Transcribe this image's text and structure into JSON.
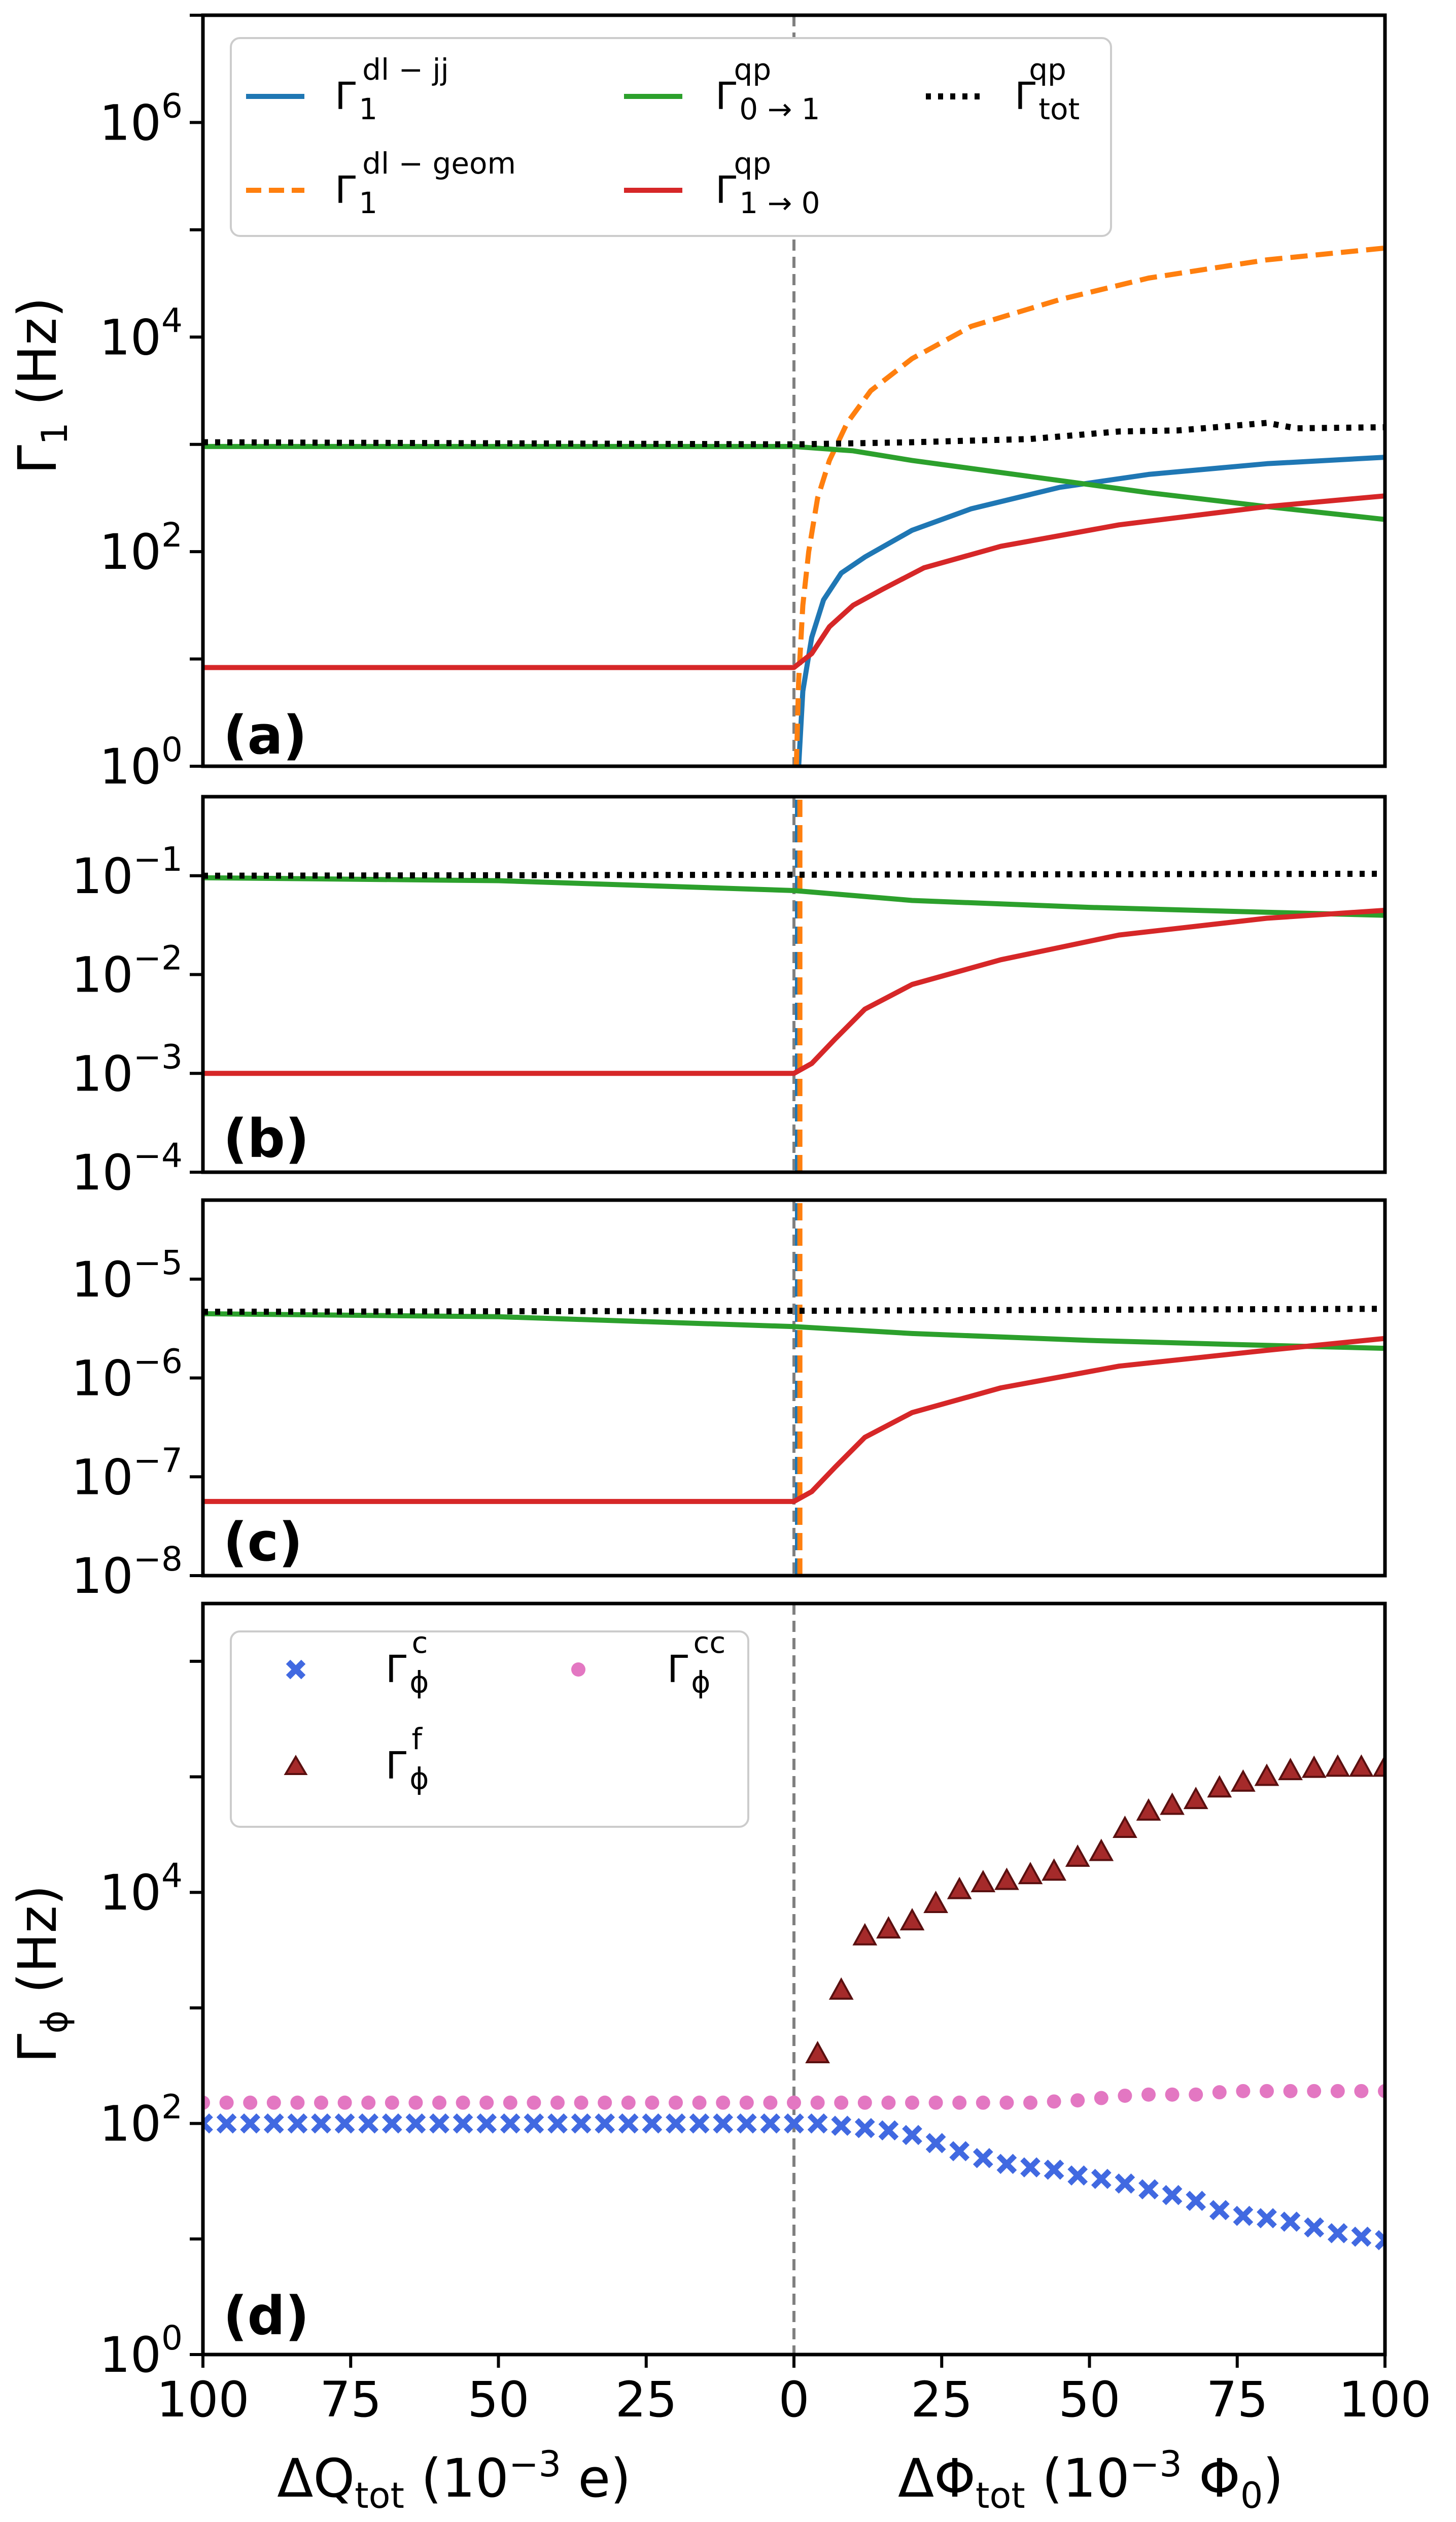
{
  "chart_data": [
    {
      "type": "line",
      "panel": "(a)",
      "ylabel": "Γ1 (Hz)",
      "yscale": "log",
      "ylim_exp": [
        0,
        7
      ],
      "ytick_exps": [
        0,
        2,
        4,
        6
      ],
      "xlim": [
        -100,
        100
      ],
      "legend": {
        "placement": "top-left",
        "entries": [
          {
            "series": "g1_dl_jj",
            "label": "Γ1^dl−jj"
          },
          {
            "series": "g1_dl_geom",
            "label": "Γ1^dl−geom"
          },
          {
            "series": "g01_qp",
            "label": "Γ0→1^qp"
          },
          {
            "series": "g10_qp",
            "label": "Γ1→0^qp"
          },
          {
            "series": "gtot_qp",
            "label": "Γtot^qp"
          }
        ]
      },
      "series": [
        {
          "name": "g1_dl_jj",
          "color": "#1f77b4",
          "style": "solid",
          "x": [
            0.8,
            1.5,
            3,
            5,
            8,
            12,
            20,
            30,
            45,
            60,
            80,
            100
          ],
          "log10": [
            0,
            0.7,
            1.2,
            1.55,
            1.8,
            1.95,
            2.2,
            2.4,
            2.6,
            2.72,
            2.82,
            2.88
          ]
        },
        {
          "name": "g1_dl_geom",
          "color": "#ff7f0e",
          "style": "dashed",
          "x": [
            0.4,
            0.8,
            1.5,
            2.5,
            4,
            6,
            9,
            13,
            20,
            30,
            45,
            60,
            80,
            100
          ],
          "log10": [
            0,
            0.8,
            1.5,
            2.0,
            2.5,
            2.85,
            3.2,
            3.5,
            3.8,
            4.1,
            4.35,
            4.55,
            4.72,
            4.83
          ]
        },
        {
          "name": "g01_qp",
          "color": "#2ca02c",
          "style": "solid",
          "x": [
            -100,
            -50,
            0,
            10,
            20,
            40,
            60,
            80,
            100
          ],
          "log10": [
            2.98,
            2.98,
            2.98,
            2.94,
            2.85,
            2.7,
            2.55,
            2.42,
            2.3
          ]
        },
        {
          "name": "g10_qp",
          "color": "#d62728",
          "style": "solid",
          "x": [
            -100,
            0,
            3,
            6,
            10,
            15,
            22,
            35,
            55,
            80,
            100
          ],
          "log10": [
            0.92,
            0.92,
            1.05,
            1.3,
            1.5,
            1.65,
            1.85,
            2.05,
            2.25,
            2.42,
            2.52
          ]
        },
        {
          "name": "gtot_qp",
          "color": "#000000",
          "style": "dotted",
          "x": [
            -100,
            -50,
            0,
            20,
            40,
            55,
            65,
            80,
            85,
            100
          ],
          "log10": [
            3.02,
            3.01,
            3.0,
            3.02,
            3.05,
            3.12,
            3.13,
            3.2,
            3.15,
            3.16
          ]
        }
      ]
    },
    {
      "type": "line",
      "panel": "(b)",
      "yscale": "log",
      "ylim_exp": [
        -4,
        -0.2
      ],
      "ytick_exps": [
        -4,
        -3,
        -2,
        -1
      ],
      "xlim": [
        -100,
        100
      ],
      "series": [
        {
          "name": "g1_dl_jj",
          "color": "#1f77b4",
          "style": "dashed",
          "x": [
            0.6,
            0.6
          ],
          "log10": [
            -4,
            -0.2
          ]
        },
        {
          "name": "g1_dl_geom",
          "color": "#ff7f0e",
          "style": "dashed",
          "x": [
            1.0,
            1.0
          ],
          "log10": [
            -4,
            -0.2
          ]
        },
        {
          "name": "g01_qp",
          "color": "#2ca02c",
          "style": "solid",
          "x": [
            -100,
            -50,
            0,
            20,
            50,
            80,
            100
          ],
          "log10": [
            -1.02,
            -1.05,
            -1.15,
            -1.25,
            -1.32,
            -1.37,
            -1.4
          ]
        },
        {
          "name": "g10_qp",
          "color": "#d62728",
          "style": "solid",
          "x": [
            -100,
            0,
            3,
            7,
            12,
            20,
            35,
            55,
            80,
            100
          ],
          "log10": [
            -3.0,
            -3.0,
            -2.9,
            -2.65,
            -2.35,
            -2.1,
            -1.85,
            -1.6,
            -1.43,
            -1.35
          ]
        },
        {
          "name": "gtot_qp",
          "color": "#000000",
          "style": "dotted",
          "x": [
            -100,
            0,
            100
          ],
          "log10": [
            -1.0,
            -0.99,
            -0.98
          ]
        }
      ]
    },
    {
      "type": "line",
      "panel": "(c)",
      "yscale": "log",
      "ylim_exp": [
        -8,
        -4.2
      ],
      "ytick_exps": [
        -8,
        -7,
        -6,
        -5
      ],
      "xlim": [
        -100,
        100
      ],
      "series": [
        {
          "name": "g1_dl_jj",
          "color": "#1f77b4",
          "style": "dashed",
          "x": [
            0.6,
            0.6
          ],
          "log10": [
            -8,
            -4.2
          ]
        },
        {
          "name": "g1_dl_geom",
          "color": "#ff7f0e",
          "style": "dashed",
          "x": [
            1.0,
            1.0
          ],
          "log10": [
            -8,
            -4.2
          ]
        },
        {
          "name": "g01_qp",
          "color": "#2ca02c",
          "style": "solid",
          "x": [
            -100,
            -50,
            0,
            20,
            50,
            80,
            100
          ],
          "log10": [
            -5.35,
            -5.38,
            -5.48,
            -5.55,
            -5.62,
            -5.67,
            -5.7
          ]
        },
        {
          "name": "g10_qp",
          "color": "#d62728",
          "style": "solid",
          "x": [
            -100,
            0,
            3,
            7,
            12,
            20,
            35,
            55,
            80,
            100
          ],
          "log10": [
            -7.25,
            -7.25,
            -7.15,
            -6.9,
            -6.6,
            -6.35,
            -6.1,
            -5.88,
            -5.72,
            -5.6
          ]
        },
        {
          "name": "gtot_qp",
          "color": "#000000",
          "style": "dotted",
          "x": [
            -100,
            0,
            100
          ],
          "log10": [
            -5.33,
            -5.32,
            -5.3
          ]
        }
      ]
    },
    {
      "type": "scatter",
      "panel": "(d)",
      "ylabel": "Γϕ (Hz)",
      "yscale": "log",
      "ylim_exp": [
        0,
        6.5
      ],
      "ytick_exps": [
        0,
        2,
        4
      ],
      "xlim": [
        -100,
        100
      ],
      "xtick_labels": [
        "100",
        "75",
        "50",
        "25",
        "0",
        "25",
        "50",
        "75",
        "100"
      ],
      "xlabel_left": "ΔQtot (10−3 e)",
      "xlabel_right": "ΔΦtot (10−3 Φ0)",
      "legend": {
        "placement": "top-left",
        "entries": [
          {
            "series": "g_phi_c",
            "label": "Γϕ^c"
          },
          {
            "series": "g_phi_cc",
            "label": "Γϕ^cc"
          },
          {
            "series": "g_phi_f",
            "label": "Γϕ^f"
          }
        ]
      },
      "series": [
        {
          "name": "g_phi_c",
          "marker": "x",
          "color": "#4169e1",
          "x": [
            -100,
            -96,
            -92,
            -88,
            -84,
            -80,
            -76,
            -72,
            -68,
            -64,
            -60,
            -56,
            -52,
            -48,
            -44,
            -40,
            -36,
            -32,
            -28,
            -24,
            -20,
            -16,
            -12,
            -8,
            -4,
            0,
            4,
            8,
            12,
            16,
            20,
            24,
            28,
            32,
            36,
            40,
            44,
            48,
            52,
            56,
            60,
            64,
            68,
            72,
            76,
            80,
            84,
            88,
            92,
            96,
            100
          ],
          "log10": [
            2.0,
            2.0,
            2.0,
            2.0,
            2.0,
            2.0,
            2.0,
            2.0,
            2.0,
            2.0,
            2.0,
            2.0,
            2.0,
            2.0,
            2.0,
            2.0,
            2.0,
            2.0,
            2.0,
            2.0,
            2.0,
            2.0,
            2.0,
            2.0,
            2.0,
            2.0,
            2.0,
            1.98,
            1.96,
            1.94,
            1.9,
            1.83,
            1.76,
            1.7,
            1.65,
            1.62,
            1.6,
            1.55,
            1.52,
            1.48,
            1.43,
            1.38,
            1.33,
            1.25,
            1.2,
            1.18,
            1.15,
            1.1,
            1.05,
            1.02,
            0.99
          ]
        },
        {
          "name": "g_phi_cc",
          "marker": "o",
          "color": "#e377c2",
          "x": [
            -100,
            -96,
            -92,
            -88,
            -84,
            -80,
            -76,
            -72,
            -68,
            -64,
            -60,
            -56,
            -52,
            -48,
            -44,
            -40,
            -36,
            -32,
            -28,
            -24,
            -20,
            -16,
            -12,
            -8,
            -4,
            0,
            4,
            8,
            12,
            16,
            20,
            24,
            28,
            32,
            36,
            40,
            44,
            48,
            52,
            56,
            60,
            64,
            68,
            72,
            76,
            80,
            84,
            88,
            92,
            96,
            100
          ],
          "log10": [
            2.18,
            2.18,
            2.18,
            2.18,
            2.18,
            2.18,
            2.18,
            2.18,
            2.18,
            2.18,
            2.18,
            2.18,
            2.18,
            2.18,
            2.18,
            2.18,
            2.18,
            2.18,
            2.18,
            2.18,
            2.18,
            2.18,
            2.18,
            2.18,
            2.18,
            2.18,
            2.18,
            2.18,
            2.18,
            2.18,
            2.18,
            2.18,
            2.18,
            2.18,
            2.18,
            2.18,
            2.19,
            2.2,
            2.22,
            2.24,
            2.25,
            2.25,
            2.25,
            2.27,
            2.28,
            2.28,
            2.28,
            2.28,
            2.28,
            2.28,
            2.28
          ]
        },
        {
          "name": "g_phi_f",
          "marker": "^",
          "color": "#a52a2a",
          "x": [
            4,
            8,
            12,
            16,
            20,
            24,
            28,
            32,
            36,
            40,
            44,
            48,
            52,
            56,
            60,
            64,
            68,
            72,
            76,
            80,
            84,
            88,
            92,
            96,
            100
          ],
          "log10": [
            2.6,
            3.15,
            3.62,
            3.68,
            3.75,
            3.9,
            4.02,
            4.08,
            4.1,
            4.15,
            4.18,
            4.3,
            4.35,
            4.55,
            4.7,
            4.75,
            4.8,
            4.9,
            4.95,
            5.0,
            5.05,
            5.07,
            5.08,
            5.08,
            5.08
          ]
        }
      ]
    }
  ]
}
